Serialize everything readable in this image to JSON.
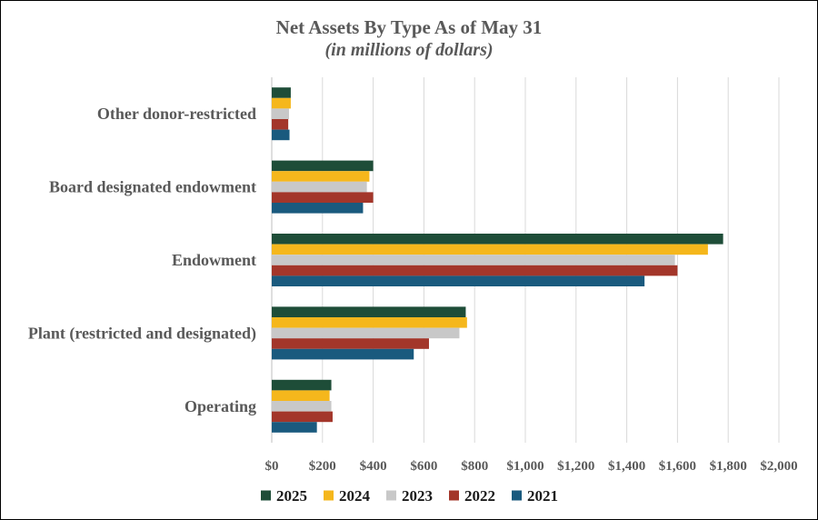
{
  "chart_data": {
    "type": "bar",
    "orientation": "horizontal",
    "title": "Net Assets By Type As of May 31",
    "subtitle": "(in millions of dollars)",
    "categories": [
      "Other donor-restricted",
      "Board designated endowment",
      "Endowment",
      "Plant (restricted and designated)",
      "Operating"
    ],
    "series": [
      {
        "name": "2025",
        "color": "#1e4d38",
        "values": [
          75,
          400,
          1780,
          765,
          235
        ]
      },
      {
        "name": "2024",
        "color": "#f5b71c",
        "values": [
          75,
          385,
          1720,
          770,
          228
        ]
      },
      {
        "name": "2023",
        "color": "#c8c8c8",
        "values": [
          68,
          375,
          1590,
          740,
          235
        ]
      },
      {
        "name": "2022",
        "color": "#a3362a",
        "values": [
          65,
          400,
          1600,
          620,
          240
        ]
      },
      {
        "name": "2021",
        "color": "#1a5a7e",
        "values": [
          70,
          360,
          1470,
          560,
          178
        ]
      }
    ],
    "xlim": [
      0,
      2000
    ],
    "xticks": [
      "$0",
      "$200",
      "$400",
      "$600",
      "$800",
      "$1,000",
      "$1,200",
      "$1,400",
      "$1,600",
      "$1,800",
      "$2,000"
    ],
    "grid": true,
    "legend_position": "bottom"
  }
}
